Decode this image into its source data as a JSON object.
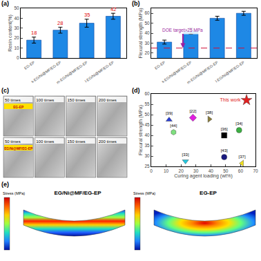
{
  "chart_data": [
    {
      "panel": "(a)",
      "type": "bar",
      "categories": [
        "EG-EP",
        "s-EG/Ni@MF/EG-EP",
        "m-EG/Ni@MF/EG-EP",
        "l-EG/Ni@MF/EG-EP"
      ],
      "values": [
        18,
        28,
        35,
        42
      ],
      "errors": [
        3,
        3,
        4,
        3
      ],
      "color": "#1e88e5",
      "data_labels": true,
      "ylabel": "Resin content(%)",
      "ylim": [
        0,
        50
      ],
      "yticks": [
        0,
        10,
        20,
        30,
        40,
        50
      ]
    },
    {
      "panel": "(b)",
      "type": "bar",
      "categories": [
        "EG-EP",
        "s-EG/Ni@MF/EG-EP",
        "m-EG/Ni@MF/EG-EP",
        "l-EG/Ni@MF/EG-EP"
      ],
      "values": [
        31,
        42,
        55,
        60
      ],
      "errors": [
        2,
        3,
        2,
        2
      ],
      "color": "#1e88e5",
      "ylabel": "Flexural strength (MPa)",
      "ylim": [
        15,
        65
      ],
      "yticks": [
        20,
        30,
        40,
        50,
        60
      ],
      "reference_line": {
        "value": 25,
        "label": "DOE target>25 MPa"
      }
    },
    {
      "panel": "(c)",
      "type": "photo_grid",
      "rows": [
        {
          "label": "EG-EP",
          "frames": [
            "50 times",
            "100 times",
            "150 times",
            "200 times"
          ]
        },
        {
          "label": "EG/Ni@MF/EG-EP",
          "frames": [
            "50 times",
            "100 times",
            "150 times",
            "200 times"
          ]
        }
      ]
    },
    {
      "panel": "(d)",
      "type": "scatter",
      "xlabel": "Curing agent loading (wt%)",
      "ylabel": "Flexural strength (MPa)",
      "xlim": [
        0,
        70
      ],
      "xticks": [
        0,
        10,
        20,
        30,
        40,
        50,
        60,
        70
      ],
      "ylim": [
        25,
        60
      ],
      "yticks": [
        25,
        30,
        35,
        40,
        45,
        50,
        55,
        60
      ],
      "series": [
        {
          "name": "[39]",
          "color": "#2a3fd6",
          "marker": "triangle-up",
          "x": [
            12
          ],
          "y": [
            47.5
          ]
        },
        {
          "name": "[22]",
          "color": "#e020e0",
          "marker": "diamond",
          "x": [
            28
          ],
          "y": [
            48.5
          ]
        },
        {
          "name": "[38]",
          "color": "#8b7d3a",
          "marker": "triangle-right",
          "x": [
            39
          ],
          "y": [
            47.8
          ]
        },
        {
          "name": "[44]",
          "color": "#7fe07f",
          "marker": "hexagon",
          "x": [
            15
          ],
          "y": [
            41.5
          ]
        },
        {
          "name": "[34]",
          "color": "#3cb043",
          "marker": "circle",
          "x": [
            59
          ],
          "y": [
            42.5
          ]
        },
        {
          "name": "[36]",
          "color": "#000000",
          "marker": "square",
          "x": [
            49
          ],
          "y": [
            40
          ]
        },
        {
          "name": "[43]",
          "color": "#1a1a80",
          "marker": "circle",
          "x": [
            49
          ],
          "y": [
            29.5
          ]
        },
        {
          "name": "[33]",
          "color": "#22c8e0",
          "marker": "triangle-down",
          "x": [
            23
          ],
          "y": [
            27.5
          ]
        },
        {
          "name": "[37]",
          "color": "#f0e020",
          "marker": "triangle-left",
          "x": [
            61
          ],
          "y": [
            26.5
          ]
        },
        {
          "name": "This work",
          "color": "#e02020",
          "marker": "star",
          "x": [
            64
          ],
          "y": [
            57
          ]
        }
      ]
    },
    {
      "panel": "(e)",
      "type": "stress_map",
      "colorbar_title": "Stress (MPa)",
      "maps": [
        {
          "title": "EG/Ni@MF/EG-EP"
        },
        {
          "title": "EG-EP"
        }
      ]
    }
  ]
}
